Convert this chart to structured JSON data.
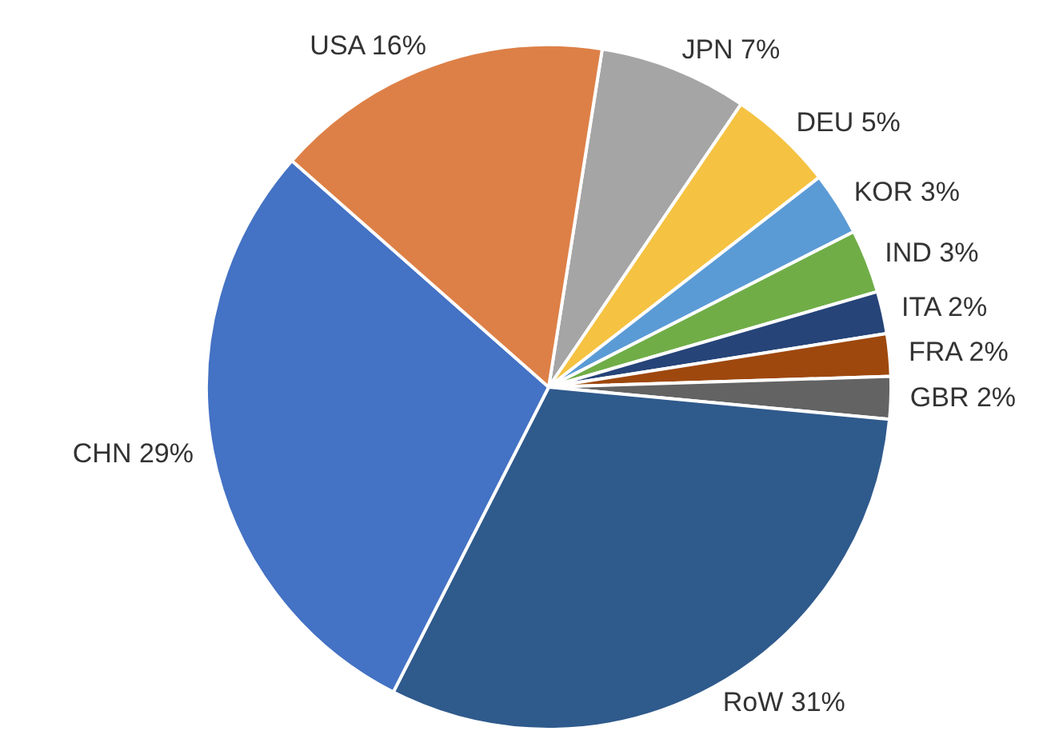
{
  "chart_data": {
    "type": "pie",
    "categories": [
      "JPN",
      "DEU",
      "KOR",
      "IND",
      "ITA",
      "FRA",
      "GBR",
      "RoW",
      "CHN",
      "USA"
    ],
    "values": [
      7,
      5,
      3,
      3,
      2,
      2,
      2,
      31,
      29,
      16
    ],
    "value_labels": [
      "7%",
      "5%",
      "3%",
      "3%",
      "2%",
      "2%",
      "2%",
      "31%",
      "29%",
      "16%"
    ],
    "colors": [
      "#a5a5a5",
      "#f5c242",
      "#5b9bd5",
      "#70ad47",
      "#264478",
      "#9e480e",
      "#636363",
      "#2f5a8c",
      "#4472c4",
      "#dd8047"
    ]
  }
}
